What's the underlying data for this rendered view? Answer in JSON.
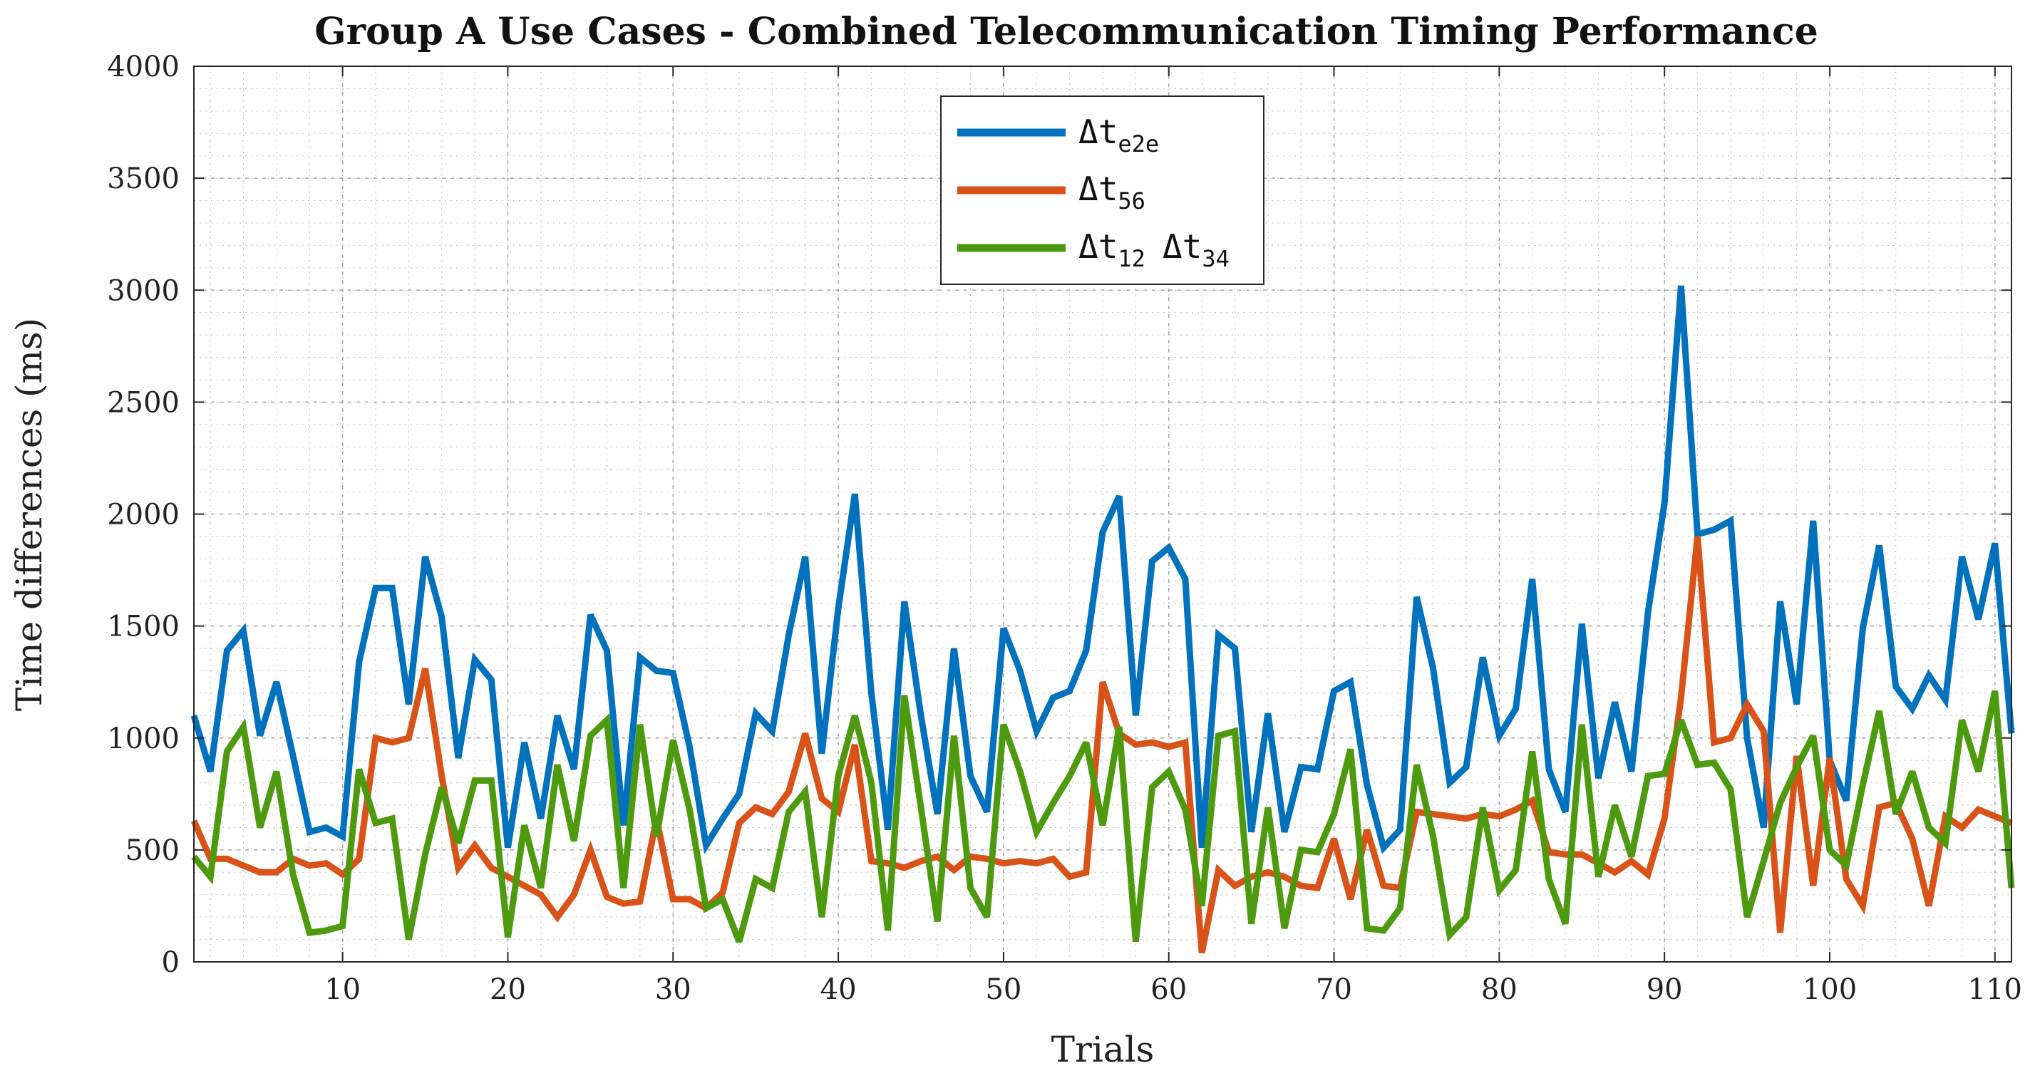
{
  "chart_data": {
    "type": "line",
    "title": "Group A Use Cases - Combined Telecommunication Timing Performance",
    "xlabel": "Trials",
    "ylabel": "Time differences (ms)",
    "xlim": [
      1,
      111
    ],
    "ylim": [
      0,
      4000
    ],
    "xticks": [
      10,
      20,
      30,
      40,
      50,
      60,
      70,
      80,
      90,
      100,
      110
    ],
    "yticks": [
      0,
      500,
      1000,
      1500,
      2000,
      2500,
      3000,
      3500,
      4000
    ],
    "grid": true,
    "minor_grid": true,
    "legend_position": "top-center",
    "series": [
      {
        "name": "Δt_e2e",
        "legend_main": "Δt",
        "legend_sub": "e2e",
        "color": "#0072BD",
        "values": [
          1100,
          850,
          1390,
          1480,
          1010,
          1250,
          920,
          580,
          600,
          560,
          1340,
          1670,
          1670,
          1150,
          1810,
          1540,
          910,
          1350,
          1260,
          510,
          980,
          640,
          1100,
          860,
          1550,
          1390,
          610,
          1360,
          1300,
          1290,
          960,
          520,
          640,
          750,
          1110,
          1030,
          1460,
          1810,
          930,
          1580,
          2090,
          1200,
          590,
          1610,
          1100,
          660,
          1400,
          830,
          670,
          1490,
          1300,
          1030,
          1180,
          1210,
          1390,
          1920,
          2080,
          1100,
          1790,
          1850,
          1710,
          510,
          1460,
          1400,
          580,
          1110,
          580,
          870,
          860,
          1210,
          1250,
          790,
          510,
          590,
          1630,
          1310,
          800,
          870,
          1360,
          1010,
          1130,
          1710,
          860,
          670,
          1510,
          820,
          1160,
          850,
          1560,
          2050,
          3020,
          1910,
          1930,
          1970,
          1000,
          600,
          1610,
          1150,
          1970,
          900,
          720,
          1490,
          1860,
          1230,
          1130,
          1280,
          1170,
          1810,
          1530,
          1870,
          1020
        ]
      },
      {
        "name": "Δt_56",
        "legend_main": "Δt",
        "legend_sub": "56",
        "color": "#D95319",
        "values": [
          630,
          460,
          460,
          430,
          400,
          400,
          460,
          430,
          440,
          390,
          460,
          1000,
          980,
          1000,
          1310,
          830,
          420,
          520,
          420,
          380,
          340,
          300,
          200,
          300,
          500,
          290,
          260,
          270,
          640,
          280,
          280,
          240,
          310,
          620,
          690,
          660,
          760,
          1020,
          730,
          670,
          970,
          450,
          440,
          420,
          450,
          470,
          410,
          470,
          460,
          440,
          450,
          440,
          460,
          380,
          400,
          1250,
          1020,
          970,
          980,
          960,
          980,
          40,
          410,
          340,
          380,
          400,
          380,
          340,
          330,
          550,
          280,
          590,
          340,
          330,
          670,
          660,
          650,
          640,
          660,
          650,
          680,
          720,
          490,
          480,
          480,
          440,
          400,
          450,
          390,
          640,
          1180,
          1900,
          980,
          1000,
          1150,
          1030,
          130,
          920,
          340,
          910,
          370,
          250,
          690,
          710,
          550,
          250,
          650,
          600,
          680,
          650,
          620
        ]
      },
      {
        "name": "Δt_12 Δt_34",
        "legend_main": "Δt",
        "legend_sub": "12",
        "legend_main2": "Δt",
        "legend_sub2": "34",
        "color": "#4D9A0E",
        "values": [
          470,
          380,
          940,
          1050,
          600,
          850,
          390,
          130,
          140,
          160,
          860,
          620,
          640,
          100,
          480,
          780,
          530,
          810,
          810,
          110,
          610,
          330,
          880,
          540,
          1010,
          1080,
          330,
          1060,
          560,
          990,
          680,
          240,
          280,
          90,
          370,
          330,
          670,
          760,
          200,
          830,
          1100,
          800,
          140,
          1190,
          690,
          180,
          1010,
          330,
          200,
          1060,
          850,
          580,
          710,
          830,
          980,
          610,
          1050,
          90,
          780,
          850,
          680,
          250,
          1010,
          1030,
          170,
          690,
          150,
          500,
          490,
          660,
          950,
          150,
          140,
          240,
          880,
          560,
          120,
          200,
          690,
          320,
          410,
          940,
          370,
          170,
          1060,
          380,
          700,
          470,
          830,
          840,
          1080,
          880,
          890,
          770,
          200,
          450,
          710,
          870,
          1010,
          500,
          430,
          790,
          1120,
          660,
          850,
          600,
          530,
          1080,
          850,
          1210,
          330
        ]
      }
    ]
  }
}
